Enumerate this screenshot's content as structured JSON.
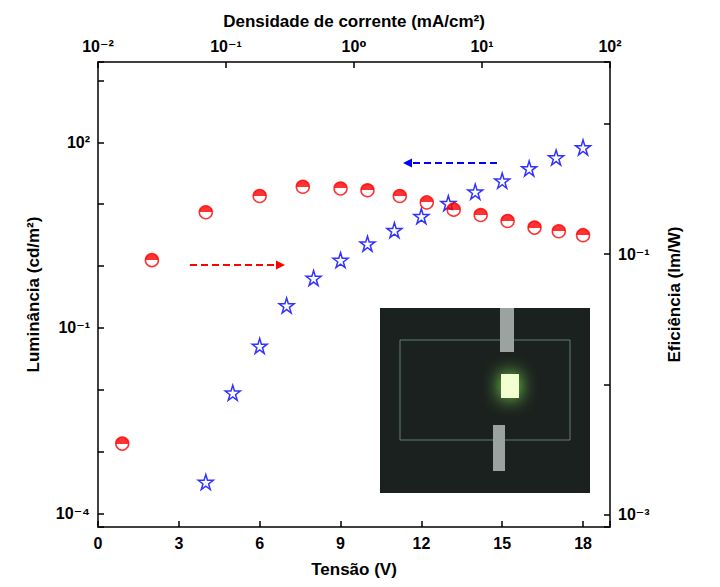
{
  "chart_data": {
    "type": "scatter",
    "xlabel": "Tensão (V)",
    "x2label": "Densidade de corrente (mA/cm²)",
    "ylabel": "Luminância (cd/m²)",
    "y2label": "Eficiência (lm/W)",
    "log": "y",
    "grid": false,
    "xlim": [
      0,
      19
    ],
    "xticks": [
      0,
      3,
      6,
      9,
      12,
      15,
      18
    ],
    "x2lim": [
      0.01,
      100
    ],
    "x2ticks": [
      {
        "value": 0.01,
        "label": "10⁻²"
      },
      {
        "value": 0.1,
        "label": "10⁻¹"
      },
      {
        "value": 1,
        "label": "10⁰"
      },
      {
        "value": 10,
        "label": "10¹"
      },
      {
        "value": 100,
        "label": "10²"
      }
    ],
    "ylim": [
      6e-05,
      2000
    ],
    "yticks": [
      {
        "value": 0.0001,
        "label": "10⁻⁴"
      },
      {
        "value": 0.1,
        "label": "10⁻¹"
      },
      {
        "value": 100,
        "label": "10²"
      }
    ],
    "y2lim": [
      0.0008,
      3
    ],
    "y2ticks": [
      {
        "value": 0.001,
        "label": "10⁻³"
      },
      {
        "value": 0.1,
        "label": "10⁻¹"
      }
    ],
    "series": [
      {
        "axis": "y",
        "color": "#0000ff",
        "marker": "star",
        "x": [
          4,
          5,
          6,
          7,
          8,
          9,
          10,
          11,
          12,
          13,
          14,
          15,
          16,
          17,
          18
        ],
        "values": [
          0.00032,
          0.0089,
          0.051,
          0.23,
          0.64,
          1.25,
          2.3,
          3.8,
          6.4,
          10.4,
          16,
          24,
          38,
          57,
          83
        ]
      },
      {
        "axis": "y2",
        "color": "#ff0000",
        "marker": "half_circle",
        "x": [
          0.9,
          2,
          4,
          6,
          7.6,
          9,
          10,
          11.2,
          12.2,
          13.2,
          14.2,
          15.2,
          16.2,
          17.1,
          18
        ],
        "values": [
          0.0035,
          0.09,
          0.21,
          0.28,
          0.33,
          0.32,
          0.31,
          0.28,
          0.25,
          0.22,
          0.2,
          0.18,
          0.16,
          0.15,
          0.14
        ]
      }
    ]
  }
}
